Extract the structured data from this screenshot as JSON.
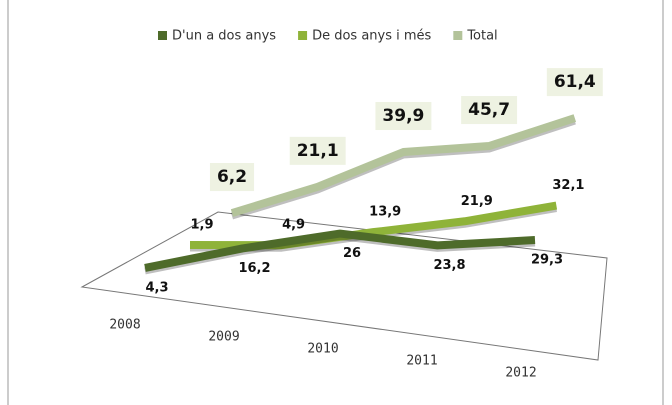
{
  "chart_data": {
    "type": "line",
    "categories": [
      "2008",
      "2009",
      "2010",
      "2011",
      "2012"
    ],
    "series": [
      {
        "name": "D'un a dos anys",
        "color": "#4e6b2a",
        "values": [
          4.3,
          16.2,
          26,
          23.8,
          29.3
        ],
        "value_labels": [
          "4,3",
          "16,2",
          "26",
          "23,8",
          "29,3"
        ]
      },
      {
        "name": "De dos anys i més",
        "color": "#8fb339",
        "values": [
          1.9,
          4.9,
          13.9,
          21.9,
          32.1
        ],
        "value_labels": [
          "1,9",
          "4,9",
          "13,9",
          "21,9",
          "32,1"
        ]
      },
      {
        "name": "Total",
        "color": "#b3c39a",
        "values": [
          6.2,
          21.1,
          39.9,
          45.7,
          61.4
        ],
        "value_labels": [
          "6,2",
          "21,1",
          "39,9",
          "45,7",
          "61,4"
        ]
      }
    ],
    "legend": "top"
  }
}
